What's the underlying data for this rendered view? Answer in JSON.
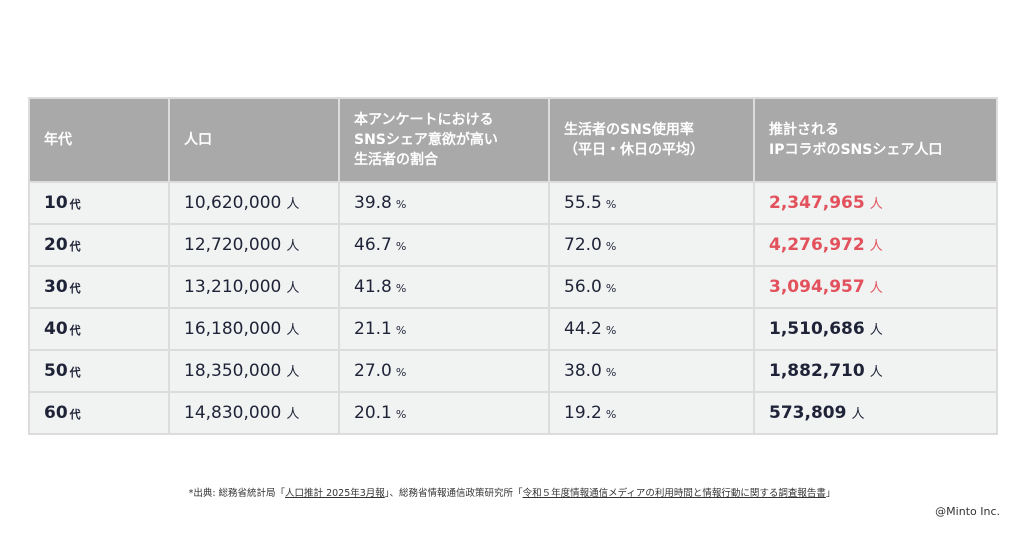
{
  "table": {
    "headers": {
      "age": "年代",
      "population": "人口",
      "intent": [
        "本アンケートにおける",
        "SNSシェア意欲が高い",
        "生活者の割合"
      ],
      "usage": [
        "生活者のSNS使用率",
        "（平日・休日の平均）"
      ],
      "ip": [
        "推計される",
        "IPコラボのSNSシェア人口"
      ]
    },
    "rows": [
      {
        "age": "10",
        "age_unit": "代",
        "population": "10,620,000",
        "pop_unit": "人",
        "intent": "39.8",
        "intent_unit": "%",
        "usage": "55.5",
        "usage_unit": "%",
        "ip": "2,347,965",
        "ip_unit": "人",
        "highlight": true
      },
      {
        "age": "20",
        "age_unit": "代",
        "population": "12,720,000",
        "pop_unit": "人",
        "intent": "46.7",
        "intent_unit": "%",
        "usage": "72.0",
        "usage_unit": "%",
        "ip": "4,276,972",
        "ip_unit": "人",
        "highlight": true
      },
      {
        "age": "30",
        "age_unit": "代",
        "population": "13,210,000",
        "pop_unit": "人",
        "intent": "41.8",
        "intent_unit": "%",
        "usage": "56.0",
        "usage_unit": "%",
        "ip": "3,094,957",
        "ip_unit": "人",
        "highlight": true
      },
      {
        "age": "40",
        "age_unit": "代",
        "population": "16,180,000",
        "pop_unit": "人",
        "intent": "21.1",
        "intent_unit": "%",
        "usage": "44.2",
        "usage_unit": "%",
        "ip": "1,510,686",
        "ip_unit": "人",
        "highlight": false
      },
      {
        "age": "50",
        "age_unit": "代",
        "population": "18,350,000",
        "pop_unit": "人",
        "intent": "27.0",
        "intent_unit": "%",
        "usage": "38.0",
        "usage_unit": "%",
        "ip": "1,882,710",
        "ip_unit": "人",
        "highlight": false
      },
      {
        "age": "60",
        "age_unit": "代",
        "population": "14,830,000",
        "pop_unit": "人",
        "intent": "20.1",
        "intent_unit": "%",
        "usage": "19.2",
        "usage_unit": "%",
        "ip": "573,809",
        "ip_unit": "人",
        "highlight": false
      }
    ],
    "highlight_color": "#e2515c",
    "header_bg": "#a9a9a9",
    "row_bg": "#f1f2f2"
  },
  "footnote": {
    "prefix": "*出典: 総務省統計局「",
    "link1": "人口推計 2025年3月報",
    "middle": "」、総務省情報通信政策研究所「",
    "link2": "令和５年度情報通信メディアの利用時間と情報行動に関する調査報告書",
    "suffix": "」"
  },
  "copyright": "@Minto Inc."
}
